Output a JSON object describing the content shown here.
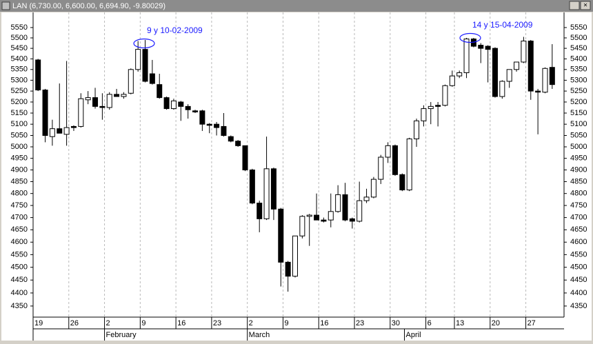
{
  "chart_data": {
    "type": "candlestick",
    "window_title": "LAN (6,730.00, 6,600.00, 6,694.90, -9.80029)",
    "annotations": [
      "9 y 10-02-2009",
      "14 y 15-04-2009"
    ],
    "categories": [
      "19",
      null,
      null,
      null,
      null,
      "26",
      null,
      null,
      null,
      null,
      "2",
      null,
      null,
      null,
      null,
      "9",
      null,
      null,
      null,
      null,
      "16",
      null,
      null,
      null,
      null,
      "23",
      null,
      null,
      null,
      null,
      "2",
      null,
      null,
      null,
      null,
      "9",
      null,
      null,
      null,
      null,
      "16",
      null,
      null,
      null,
      null,
      "23",
      null,
      null,
      null,
      null,
      "30",
      null,
      null,
      null,
      null,
      "6",
      null,
      null,
      null,
      "13",
      null,
      null,
      null,
      null,
      "20",
      null,
      null,
      null,
      null,
      "27",
      null,
      null,
      null
    ],
    "months": [
      null,
      null,
      null,
      null,
      null,
      null,
      null,
      null,
      null,
      null,
      "February",
      null,
      null,
      null,
      null,
      null,
      null,
      null,
      null,
      null,
      null,
      null,
      null,
      null,
      null,
      null,
      null,
      null,
      null,
      null,
      "March",
      null,
      null,
      null,
      null,
      null,
      null,
      null,
      null,
      null,
      null,
      null,
      null,
      null,
      null,
      null,
      null,
      null,
      null,
      null,
      null,
      null,
      "April",
      null,
      null,
      null,
      null,
      null,
      null,
      null,
      null,
      null,
      null,
      null,
      null,
      null,
      null,
      null,
      null,
      null,
      null,
      null,
      null
    ],
    "open": [
      5395,
      5255,
      5045,
      5080,
      5055,
      5090,
      5090,
      5210,
      5220,
      5180,
      5175,
      5235,
      5225,
      5240,
      5350,
      5445,
      5330,
      5280,
      5220,
      5170,
      5200,
      5180,
      5160,
      5160,
      5100,
      5100,
      5090,
      5045,
      5025,
      5005,
      4900,
      4760,
      4695,
      4905,
      4735,
      4520,
      4465,
      4625,
      4705,
      4710,
      4690,
      4690,
      4725,
      4795,
      4695,
      4685,
      4770,
      4785,
      4860,
      4955,
      5005,
      4880,
      4815,
      5035,
      5115,
      5170,
      5185,
      5185,
      5275,
      5320,
      5335,
      5495,
      5465,
      5460,
      5450,
      5225,
      5295,
      5350,
      5385,
      5485,
      5250,
      5245,
      5360
    ],
    "high": [
      5400,
      5260,
      5120,
      5285,
      5390,
      5095,
      5240,
      5250,
      5265,
      5240,
      5245,
      5260,
      5245,
      5355,
      5485,
      5490,
      5395,
      5330,
      5225,
      5215,
      5205,
      5190,
      5165,
      5165,
      5105,
      5110,
      5150,
      5050,
      5030,
      5005,
      4905,
      4770,
      5045,
      4910,
      4740,
      4525,
      4625,
      4710,
      4715,
      4800,
      4700,
      4800,
      4835,
      4845,
      4700,
      4850,
      4820,
      4870,
      4965,
      5020,
      5010,
      4885,
      5040,
      5125,
      5185,
      5200,
      5200,
      5280,
      5345,
      5345,
      5500,
      5500,
      5475,
      5465,
      5455,
      5300,
      5350,
      5385,
      5505,
      5490,
      5260,
      5360,
      5470
    ],
    "low": [
      5250,
      5020,
      5005,
      5060,
      5005,
      5070,
      5085,
      5190,
      5170,
      5120,
      5165,
      5225,
      5215,
      5235,
      5340,
      5290,
      5280,
      5215,
      5165,
      5165,
      5115,
      5125,
      5150,
      5070,
      5060,
      5050,
      5045,
      5020,
      5000,
      4895,
      4755,
      4640,
      4690,
      4690,
      4425,
      4405,
      4460,
      4615,
      4585,
      4690,
      4680,
      4660,
      4720,
      4685,
      4655,
      4680,
      4760,
      4780,
      4840,
      4930,
      4875,
      4810,
      4810,
      5000,
      5090,
      5100,
      5090,
      5180,
      5270,
      5310,
      5310,
      5455,
      5380,
      5290,
      5220,
      5215,
      5265,
      5340,
      5380,
      5210,
      5055,
      5240,
      5260
    ],
    "close": [
      5255,
      5050,
      5080,
      5060,
      5085,
      5085,
      5215,
      5220,
      5180,
      5175,
      5235,
      5225,
      5235,
      5350,
      5445,
      5295,
      5285,
      5220,
      5170,
      5205,
      5180,
      5165,
      5155,
      5100,
      5095,
      5085,
      5050,
      5025,
      5005,
      4900,
      4760,
      4695,
      4905,
      4735,
      4520,
      4465,
      4625,
      4705,
      4710,
      4690,
      4685,
      4725,
      4795,
      4690,
      4685,
      4770,
      4785,
      4860,
      4955,
      5005,
      4880,
      4815,
      5035,
      5115,
      5170,
      5180,
      5180,
      5275,
      5320,
      5335,
      5495,
      5460,
      5450,
      5445,
      5225,
      5295,
      5350,
      5385,
      5485,
      5250,
      5245,
      5355,
      5280
    ],
    "up_color": "#ffffff",
    "down_color": "#000000",
    "log_scale": true,
    "grid": true,
    "ylim": [
      4308,
      5624
    ],
    "yticks": [
      4350,
      4400,
      4450,
      4500,
      4550,
      4600,
      4650,
      4700,
      4750,
      4800,
      4850,
      4900,
      4950,
      5000,
      5050,
      5100,
      5150,
      5200,
      5250,
      5300,
      5350,
      5400,
      5450,
      5500,
      5550
    ]
  }
}
